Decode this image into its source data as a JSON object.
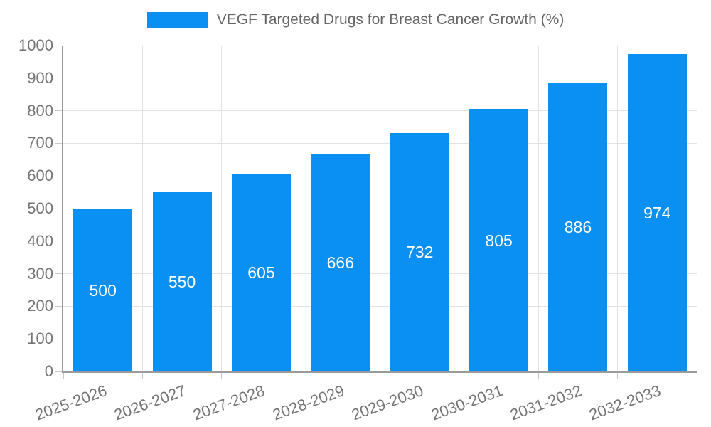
{
  "chart": {
    "legend_label": "VEGF Targeted Drugs for Breast Cancer Growth (%)"
  },
  "chart_data": {
    "type": "bar",
    "title": "VEGF Targeted Drugs for Breast Cancer Growth (%)",
    "categories": [
      "2025-2026",
      "2026-2027",
      "2027-2028",
      "2028-2029",
      "2029-2030",
      "2030-2031",
      "2031-2032",
      "2032-2033"
    ],
    "values": [
      500,
      550,
      605,
      666,
      732,
      805,
      886,
      974
    ],
    "xlabel": "",
    "ylabel": "",
    "ylim": [
      0,
      1000
    ],
    "ytick_step": 100,
    "grid": true,
    "legend_position": "top-center",
    "value_labels_position": "inside-center",
    "colors": {
      "bar": "#0a8ff2",
      "grid": "#e3e3e3",
      "axis": "#9a9a9a",
      "tick": "#c9c9c9",
      "tick_label": "#757575",
      "value_label": "#ffffff",
      "legend_text": "#666666"
    }
  }
}
